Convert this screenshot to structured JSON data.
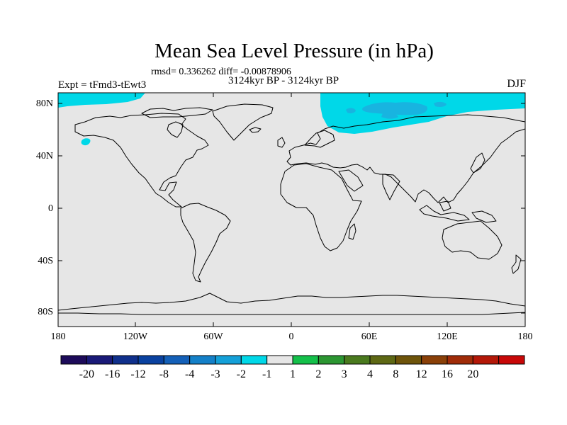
{
  "title": "Mean Sea Level Pressure (in hPa)",
  "stats_line": "rmsd= 0.336262  diff= -0.00878906",
  "period": "3124kyr BP - 3124kyr BP",
  "experiment": "Expt = tFmd3-tEwt3",
  "season": "DJF",
  "lat_labels": [
    "80N",
    "40N",
    "0",
    "40S",
    "80S"
  ],
  "lon_labels": [
    "180",
    "120W",
    "60W",
    "0",
    "60E",
    "120E",
    "180"
  ],
  "colors": {
    "land_ocean_bg": "#e6e6e6",
    "anomaly_light": "#00d8e8",
    "anomaly_mid": "#18b4e0"
  },
  "colorbar": {
    "colors": [
      "#1d0b5a",
      "#1a1a78",
      "#10308c",
      "#0a42a0",
      "#1460b8",
      "#1480c8",
      "#14a0d8",
      "#00d8e8",
      "#e6e6e6",
      "#14c04a",
      "#2c9632",
      "#4a7a1e",
      "#5e6814",
      "#6e540a",
      "#8a4008",
      "#a02c08",
      "#b41808",
      "#c80808"
    ],
    "labels": [
      "-20",
      "-16",
      "-12",
      "-8",
      "-4",
      "-3",
      "-2",
      "-1",
      "1",
      "2",
      "3",
      "4",
      "8",
      "12",
      "16",
      "20"
    ]
  }
}
